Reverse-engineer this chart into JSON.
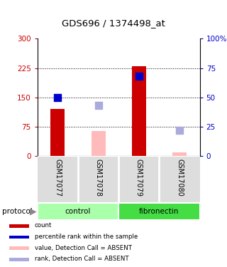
{
  "title": "GDS696 / 1374498_at",
  "samples": [
    "GSM17077",
    "GSM17078",
    "GSM17079",
    "GSM17080"
  ],
  "bar_values": [
    120,
    null,
    230,
    null
  ],
  "bar_absent_values": [
    null,
    65,
    null,
    10
  ],
  "rank_present_values": [
    50,
    null,
    68,
    null
  ],
  "rank_absent_values": [
    null,
    43,
    null,
    22
  ],
  "bar_color": "#cc0000",
  "bar_absent_color": "#ffbbbb",
  "rank_present_color": "#0000cc",
  "rank_absent_color": "#aaaadd",
  "ylim_left": [
    0,
    300
  ],
  "ylim_right": [
    0,
    100
  ],
  "yticks_left": [
    0,
    75,
    150,
    225,
    300
  ],
  "yticks_right": [
    0,
    25,
    50,
    75,
    100
  ],
  "ytick_labels_left": [
    "0",
    "75",
    "150",
    "225",
    "300"
  ],
  "ytick_labels_right": [
    "0",
    "25",
    "50",
    "75",
    "100%"
  ],
  "hlines": [
    75,
    150,
    225
  ],
  "groups": [
    {
      "label": "control",
      "cols": [
        0,
        1
      ],
      "color": "#aaffaa"
    },
    {
      "label": "fibronectin",
      "cols": [
        2,
        3
      ],
      "color": "#44dd44"
    }
  ],
  "protocol_label": "protocol",
  "legend_items": [
    {
      "label": "count",
      "color": "#cc0000"
    },
    {
      "label": "percentile rank within the sample",
      "color": "#0000cc"
    },
    {
      "label": "value, Detection Call = ABSENT",
      "color": "#ffbbbb"
    },
    {
      "label": "rank, Detection Call = ABSENT",
      "color": "#aaaadd"
    }
  ],
  "bar_width": 0.35,
  "dot_size": 45,
  "bg_color": "#dddddd",
  "group_label_color": "#ccffcc",
  "group2_color": "#44dd44"
}
